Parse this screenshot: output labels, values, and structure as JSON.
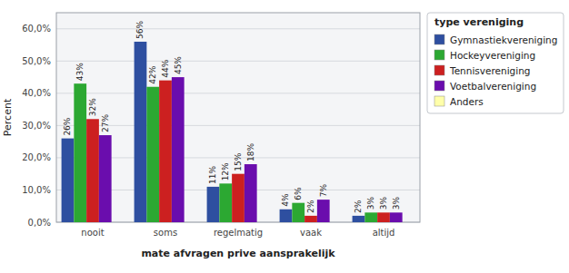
{
  "chart_data": {
    "type": "bar",
    "categories": [
      "nooit",
      "soms",
      "regelmatig",
      "vaak",
      "altijd"
    ],
    "series": [
      {
        "name": "Gymnastiekvereniging",
        "color": "#2e4fa0",
        "values": [
          26,
          56,
          11,
          4,
          2
        ],
        "value_labels": [
          "26%",
          "56%",
          "11%",
          "4%",
          "2%"
        ]
      },
      {
        "name": "Hockeyvereniging",
        "color": "#2ca832",
        "values": [
          43,
          42,
          12,
          6,
          3
        ],
        "value_labels": [
          "43%",
          "42%",
          "12%",
          "6%",
          "3%"
        ]
      },
      {
        "name": "Tennisvereniging",
        "color": "#cc2020",
        "values": [
          32,
          44,
          15,
          2,
          3
        ],
        "value_labels": [
          "32%",
          "44%",
          "15%",
          "2%",
          "3%"
        ]
      },
      {
        "name": "Voetbalvereniging",
        "color": "#6a0dad",
        "values": [
          27,
          45,
          18,
          7,
          3
        ],
        "value_labels": [
          "27%",
          "45%",
          "18%",
          "7%",
          "3%"
        ]
      },
      {
        "name": "Anders",
        "color": "#ffffaa",
        "values": [
          0,
          0,
          0,
          0,
          0
        ]
      }
    ],
    "xlabel": "mate afvragen prive aansprakelijk",
    "ylabel": "Percent",
    "legend_title": "type vereniging",
    "ylim": [
      0,
      65
    ],
    "yticks": [
      {
        "value": 0,
        "label": "0,0%"
      },
      {
        "value": 10,
        "label": "10,0%"
      },
      {
        "value": 20,
        "label": "20,0%"
      },
      {
        "value": 30,
        "label": "30,0%"
      },
      {
        "value": 40,
        "label": "40,0%"
      },
      {
        "value": 50,
        "label": "50,0%"
      },
      {
        "value": 60,
        "label": "60,0%"
      }
    ],
    "grid": true,
    "legend": "upper right",
    "data_labels": true
  }
}
